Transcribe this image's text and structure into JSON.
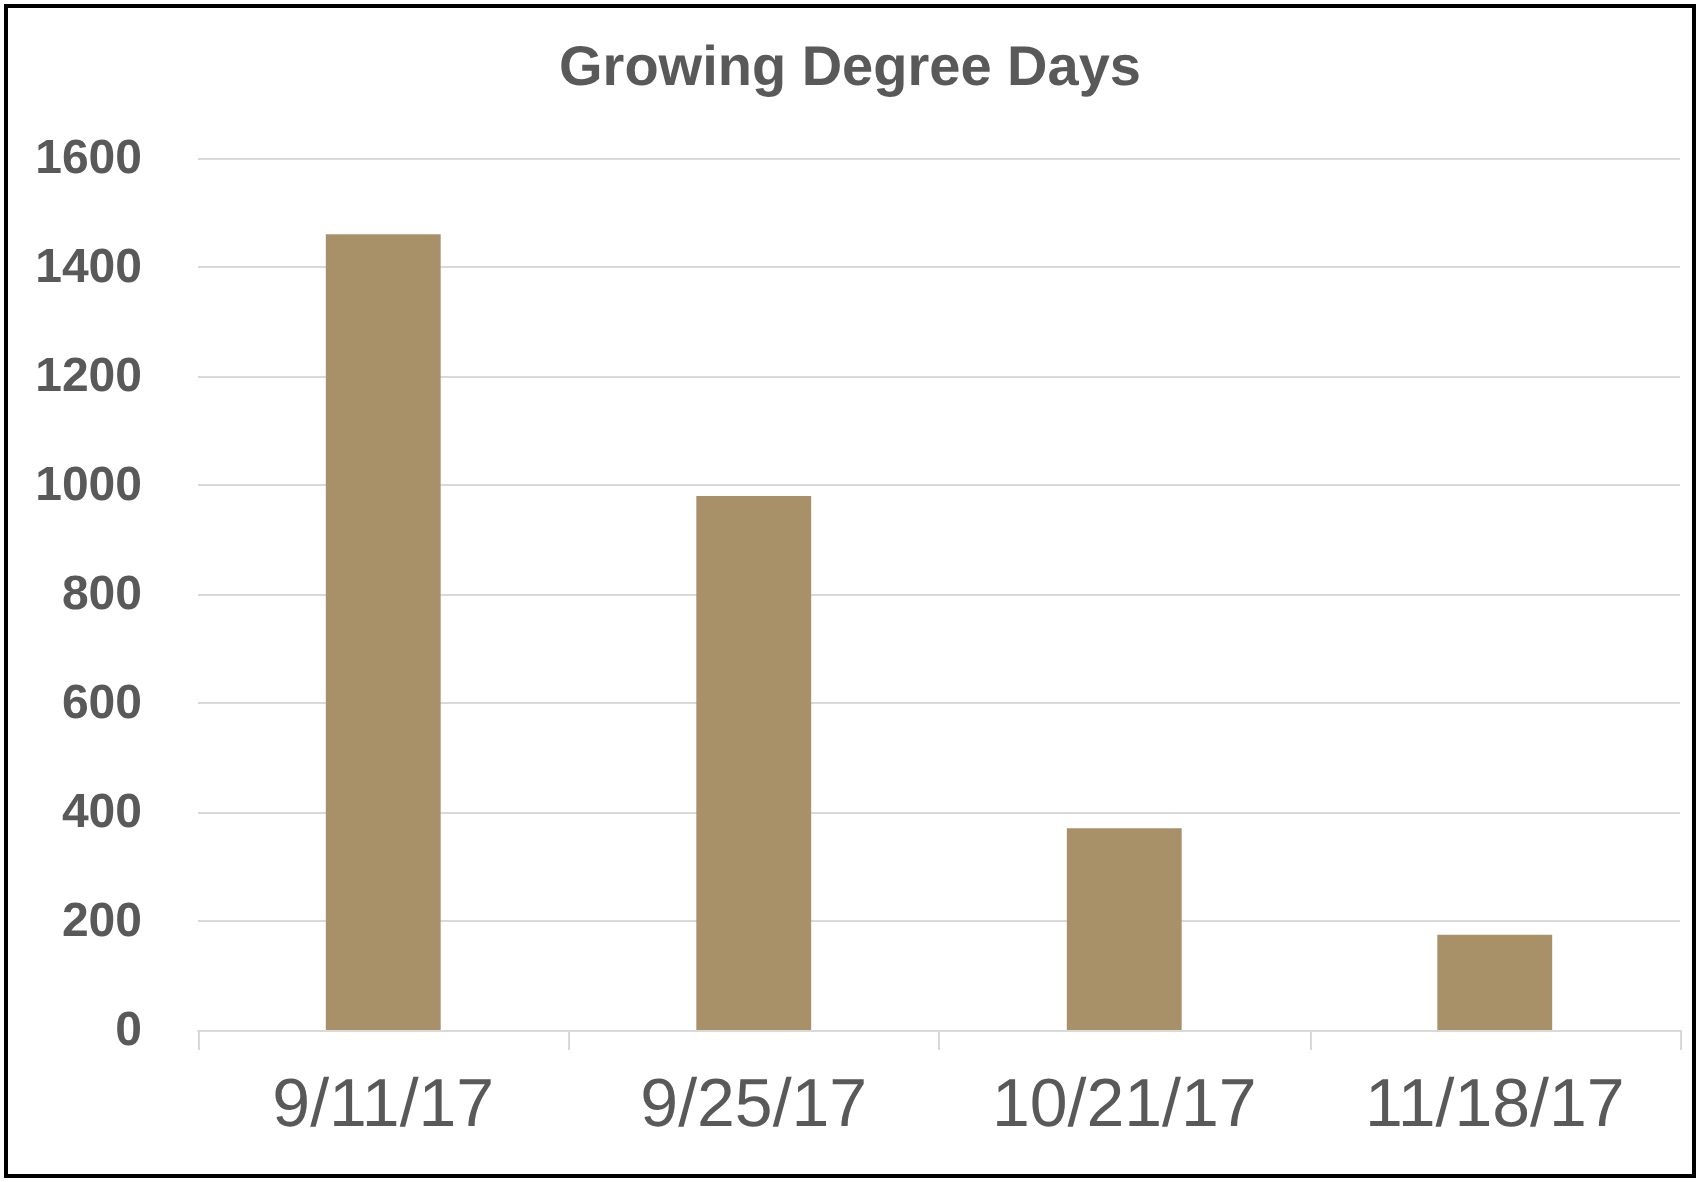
{
  "chart_data": {
    "type": "bar",
    "title": "Growing Degree Days",
    "categories": [
      "9/11/17",
      "9/25/17",
      "10/21/17",
      "11/18/17"
    ],
    "values": [
      1460,
      980,
      370,
      175
    ],
    "color": "#a89068",
    "ylim": [
      0,
      1600
    ],
    "yticks": [
      0,
      200,
      400,
      600,
      800,
      1000,
      1200,
      1400,
      1600
    ],
    "grid": "y"
  }
}
